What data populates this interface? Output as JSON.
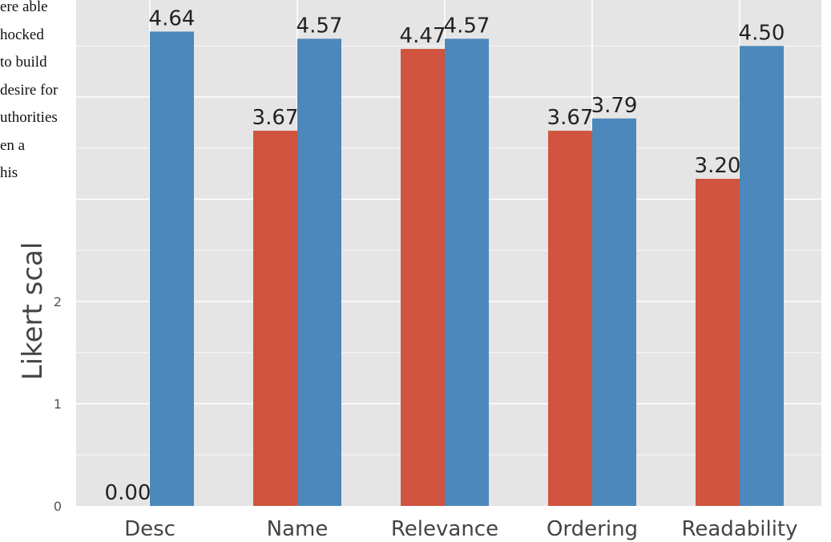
{
  "overlay_text": [
    "ere able",
    "hocked",
    "to build",
    "desire for",
    "uthorities",
    "en a",
    "his"
  ],
  "colors": {
    "panel": "#e5e5e5",
    "grid": "#ffffff",
    "series_a": "#d0543f",
    "series_b": "#4c88bb",
    "text": "#222222",
    "tick_text": "#555555"
  },
  "chart_data": {
    "type": "bar",
    "title": "",
    "xlabel": "",
    "ylabel": "Likert scal",
    "categories": [
      "Desc",
      "Name",
      "Relevance",
      "Ordering",
      "Readability"
    ],
    "y_ticks": [
      "0",
      "1",
      "2"
    ],
    "ylim": [
      0,
      5
    ],
    "grid": true,
    "series": [
      {
        "color": "#d0543f",
        "values": [
          0.0,
          3.67,
          4.47,
          3.67,
          3.2
        ],
        "labels": [
          "0.00",
          "3.67",
          "4.47",
          "3.67",
          "3.20"
        ]
      },
      {
        "color": "#4c88bb",
        "values": [
          4.64,
          4.57,
          4.57,
          3.79,
          4.5
        ],
        "labels": [
          "4.64",
          "4.57",
          "4.57",
          "3.79",
          "4.50"
        ]
      }
    ]
  }
}
